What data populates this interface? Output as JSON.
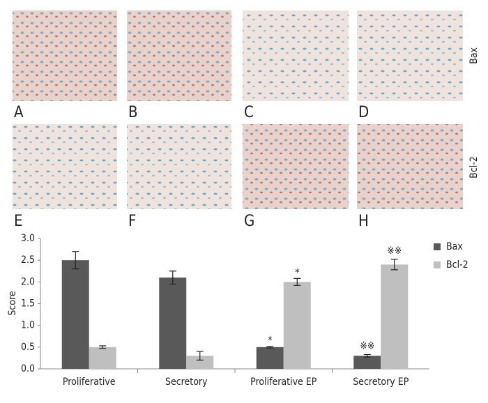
{
  "panels": {
    "letters": [
      "A",
      "B",
      "C",
      "D",
      "E",
      "F",
      "G",
      "H"
    ],
    "row_labels": [
      "Bax",
      "Bcl-2"
    ]
  },
  "chart_data": {
    "type": "bar",
    "y_label": "Score",
    "categories": [
      "Proliferative",
      "Secretory",
      "Proliferative EP",
      "Secretory EP"
    ],
    "series": [
      {
        "name": "Bax",
        "color": "#595959",
        "values": [
          2.5,
          2.1,
          0.5,
          0.3
        ],
        "errors": [
          0.2,
          0.15,
          0.02,
          0.03
        ],
        "annotations": [
          null,
          null,
          "*",
          "※※"
        ]
      },
      {
        "name": "Bcl-2",
        "color": "#bfbfbf",
        "values": [
          0.5,
          0.3,
          2.0,
          2.4
        ],
        "errors": [
          0.03,
          0.1,
          0.08,
          0.12
        ],
        "annotations": [
          null,
          null,
          "*",
          "※※"
        ]
      }
    ],
    "ylim": [
      0,
      3
    ],
    "yticks": [
      {
        "value": 0,
        "label": "0.0"
      },
      {
        "value": 0.5,
        "label": "0.5"
      },
      {
        "value": 1,
        "label": "1.0"
      },
      {
        "value": 1.5,
        "label": "1.5"
      },
      {
        "value": 2,
        "label": "2.0"
      },
      {
        "value": 2.5,
        "label": "2.5"
      },
      {
        "value": 3,
        "label": "3.0"
      }
    ],
    "legend": "right"
  }
}
